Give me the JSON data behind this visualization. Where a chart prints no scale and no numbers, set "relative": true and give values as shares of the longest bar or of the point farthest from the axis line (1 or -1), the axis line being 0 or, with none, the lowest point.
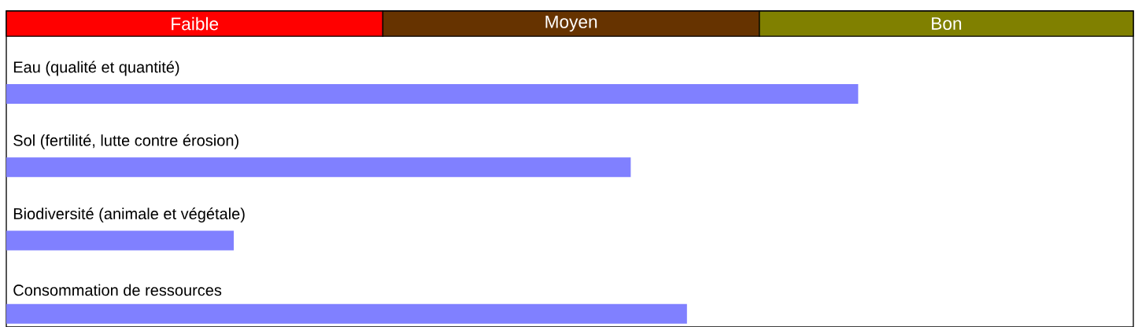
{
  "chart_data": {
    "type": "bar",
    "orientation": "horizontal",
    "relative": true,
    "categories": [
      "Eau (qualité et quantité)",
      "Sol (fertilité, lutte contre érosion)",
      "Biodiversité (animale et végétale)",
      "Consommation de ressources"
    ],
    "values": [
      1,
      0.733,
      0.267,
      0.799
    ],
    "color": "#8080ff",
    "bands": [
      {
        "axis": "x",
        "from": 0,
        "to": 0.442,
        "label": "Faible",
        "color": "#ff0000"
      },
      {
        "axis": "x",
        "from": 0.442,
        "to": 0.884,
        "label": "Moyen",
        "color": "#663300"
      },
      {
        "axis": "x",
        "from": 0.884,
        "to": 1.323,
        "label": "Bon",
        "color": "#808000"
      }
    ]
  }
}
